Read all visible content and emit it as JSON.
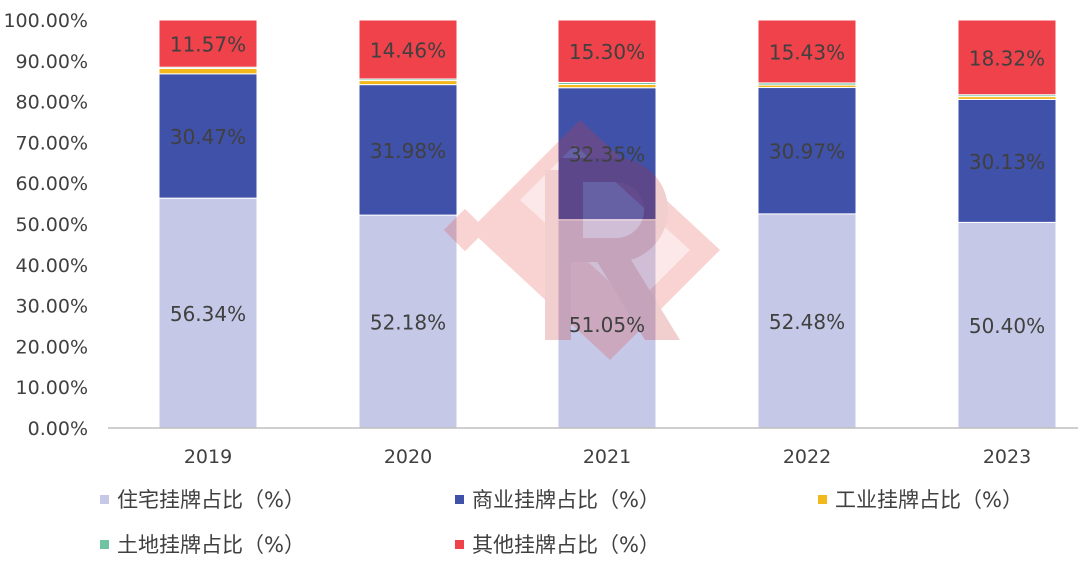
{
  "chart_data": {
    "type": "bar",
    "stacked": true,
    "categories": [
      "2019",
      "2020",
      "2021",
      "2022",
      "2023"
    ],
    "series": [
      {
        "name": "住宅挂牌占比（%）",
        "color": "#c5c8e6",
        "values": [
          56.34,
          52.18,
          51.05,
          52.48,
          50.4
        ],
        "labels": [
          "56.34%",
          "52.18%",
          "51.05%",
          "52.48%",
          "50.40%"
        ]
      },
      {
        "name": "商业挂牌占比（%）",
        "color": "#3f51a8",
        "values": [
          30.47,
          31.98,
          32.35,
          30.97,
          30.13
        ],
        "labels": [
          "30.47%",
          "31.98%",
          "32.35%",
          "30.97%",
          "30.13%"
        ]
      },
      {
        "name": "工业挂牌占比（%）",
        "color": "#f3b81b",
        "values": [
          1.3,
          1.0,
          0.8,
          0.6,
          0.7
        ],
        "labels": [
          "",
          "",
          "",
          "",
          ""
        ]
      },
      {
        "name": "土地挂牌占比（%）",
        "color": "#6fc3a0",
        "values": [
          0.32,
          0.38,
          0.5,
          0.52,
          0.45
        ],
        "labels": [
          "",
          "",
          "",
          "",
          ""
        ]
      },
      {
        "name": "其他挂牌占比（%）",
        "color": "#f0424a",
        "values": [
          11.57,
          14.46,
          15.3,
          15.43,
          18.32
        ],
        "labels": [
          "11.57%",
          "14.46%",
          "15.30%",
          "15.43%",
          "18.32%"
        ]
      }
    ],
    "ylim": [
      0,
      100
    ],
    "yticks": [
      "0.00%",
      "10.00%",
      "20.00%",
      "30.00%",
      "40.00%",
      "50.00%",
      "60.00%",
      "70.00%",
      "80.00%",
      "90.00%",
      "100.00%"
    ],
    "grid": false,
    "legend_position": "bottom"
  }
}
